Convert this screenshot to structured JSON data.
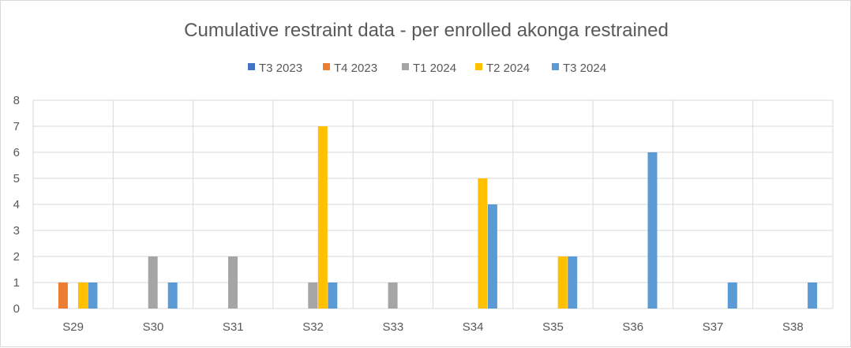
{
  "chart_data": {
    "type": "bar",
    "title": "Cumulative restraint data - per enrolled akonga restrained",
    "xlabel": "",
    "ylabel": "",
    "ylim": [
      0,
      8
    ],
    "yticks": [
      0,
      1,
      2,
      3,
      4,
      5,
      6,
      7,
      8
    ],
    "grid": true,
    "legend_position": "top",
    "categories": [
      "S29",
      "S30",
      "S31",
      "S32",
      "S33",
      "S34",
      "S35",
      "S36",
      "S37",
      "S38"
    ],
    "series": [
      {
        "name": "T3 2023",
        "color": "#4472c4",
        "values": [
          0,
          0,
          0,
          0,
          0,
          0,
          0,
          0,
          0,
          0
        ]
      },
      {
        "name": "T4 2023",
        "color": "#ed7d31",
        "values": [
          1,
          0,
          0,
          0,
          0,
          0,
          0,
          0,
          0,
          0
        ]
      },
      {
        "name": "T1 2024",
        "color": "#a5a5a5",
        "values": [
          0,
          2,
          2,
          1,
          1,
          0,
          0,
          0,
          0,
          0
        ]
      },
      {
        "name": "T2 2024",
        "color": "#ffc000",
        "values": [
          1,
          0,
          0,
          7,
          0,
          5,
          2,
          0,
          0,
          0
        ]
      },
      {
        "name": "T3 2024",
        "color": "#5b9bd5",
        "values": [
          1,
          1,
          0,
          1,
          0,
          4,
          2,
          6,
          1,
          1
        ]
      }
    ]
  }
}
